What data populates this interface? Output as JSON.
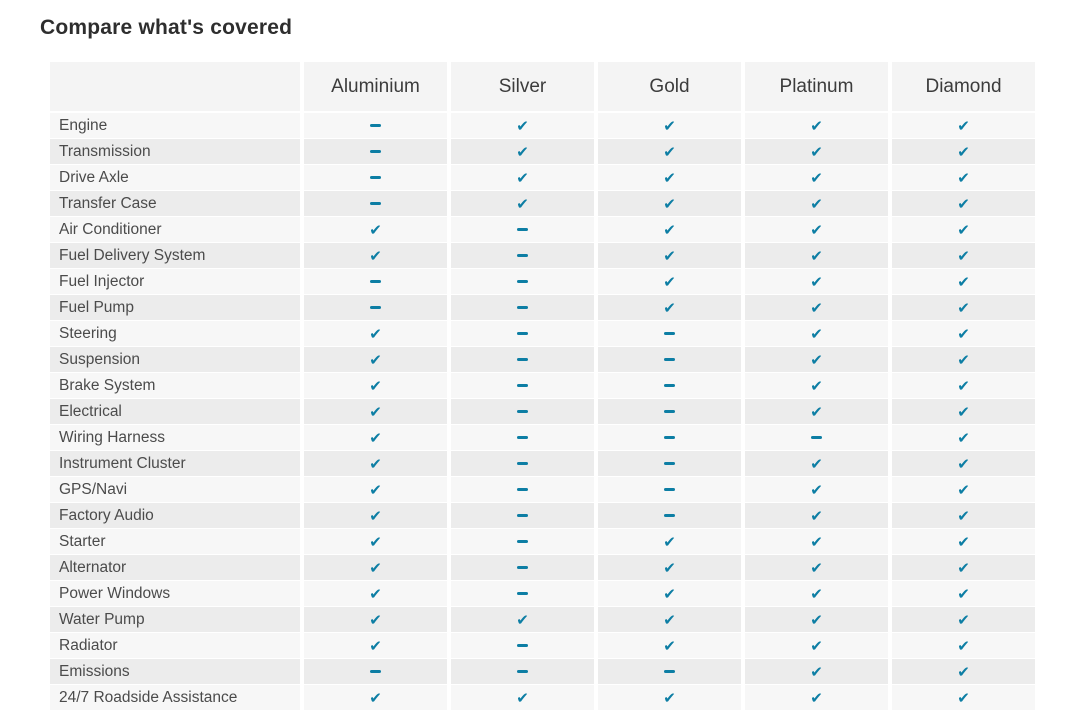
{
  "title": "Compare what's covered",
  "colors": {
    "accent": "#0d7ea4",
    "row_stripe_light": "#f7f7f7",
    "row_stripe_dark": "#ececec",
    "header_background": "#f4f4f4"
  },
  "icons": {
    "check_glyph": "✔",
    "check_meaning": "covered",
    "dash_meaning": "not covered"
  },
  "table": {
    "columns": [
      "Aluminium",
      "Silver",
      "Gold",
      "Platinum",
      "Diamond"
    ],
    "rows": [
      {
        "label": "Engine",
        "cells": [
          "dash",
          "check",
          "check",
          "check",
          "check"
        ]
      },
      {
        "label": "Transmission",
        "cells": [
          "dash",
          "check",
          "check",
          "check",
          "check"
        ]
      },
      {
        "label": "Drive Axle",
        "cells": [
          "dash",
          "check",
          "check",
          "check",
          "check"
        ]
      },
      {
        "label": "Transfer Case",
        "cells": [
          "dash",
          "check",
          "check",
          "check",
          "check"
        ]
      },
      {
        "label": "Air Conditioner",
        "cells": [
          "check",
          "dash",
          "check",
          "check",
          "check"
        ]
      },
      {
        "label": "Fuel Delivery System",
        "cells": [
          "check",
          "dash",
          "check",
          "check",
          "check"
        ]
      },
      {
        "label": "Fuel Injector",
        "cells": [
          "dash",
          "dash",
          "check",
          "check",
          "check"
        ]
      },
      {
        "label": "Fuel Pump",
        "cells": [
          "dash",
          "dash",
          "check",
          "check",
          "check"
        ]
      },
      {
        "label": "Steering",
        "cells": [
          "check",
          "dash",
          "dash",
          "check",
          "check"
        ]
      },
      {
        "label": "Suspension",
        "cells": [
          "check",
          "dash",
          "dash",
          "check",
          "check"
        ]
      },
      {
        "label": "Brake System",
        "cells": [
          "check",
          "dash",
          "dash",
          "check",
          "check"
        ]
      },
      {
        "label": "Electrical",
        "cells": [
          "check",
          "dash",
          "dash",
          "check",
          "check"
        ]
      },
      {
        "label": "Wiring Harness",
        "cells": [
          "check",
          "dash",
          "dash",
          "dash",
          "check"
        ]
      },
      {
        "label": "Instrument Cluster",
        "cells": [
          "check",
          "dash",
          "dash",
          "check",
          "check"
        ]
      },
      {
        "label": "GPS/Navi",
        "cells": [
          "check",
          "dash",
          "dash",
          "check",
          "check"
        ]
      },
      {
        "label": "Factory Audio",
        "cells": [
          "check",
          "dash",
          "dash",
          "check",
          "check"
        ]
      },
      {
        "label": "Starter",
        "cells": [
          "check",
          "dash",
          "check",
          "check",
          "check"
        ]
      },
      {
        "label": "Alternator",
        "cells": [
          "check",
          "dash",
          "check",
          "check",
          "check"
        ]
      },
      {
        "label": "Power Windows",
        "cells": [
          "check",
          "dash",
          "check",
          "check",
          "check"
        ]
      },
      {
        "label": "Water Pump",
        "cells": [
          "check",
          "check",
          "check",
          "check",
          "check"
        ]
      },
      {
        "label": "Radiator",
        "cells": [
          "check",
          "dash",
          "check",
          "check",
          "check"
        ]
      },
      {
        "label": "Emissions",
        "cells": [
          "dash",
          "dash",
          "dash",
          "check",
          "check"
        ]
      },
      {
        "label": "24/7 Roadside Assistance",
        "cells": [
          "check",
          "check",
          "check",
          "check",
          "check"
        ]
      }
    ]
  }
}
